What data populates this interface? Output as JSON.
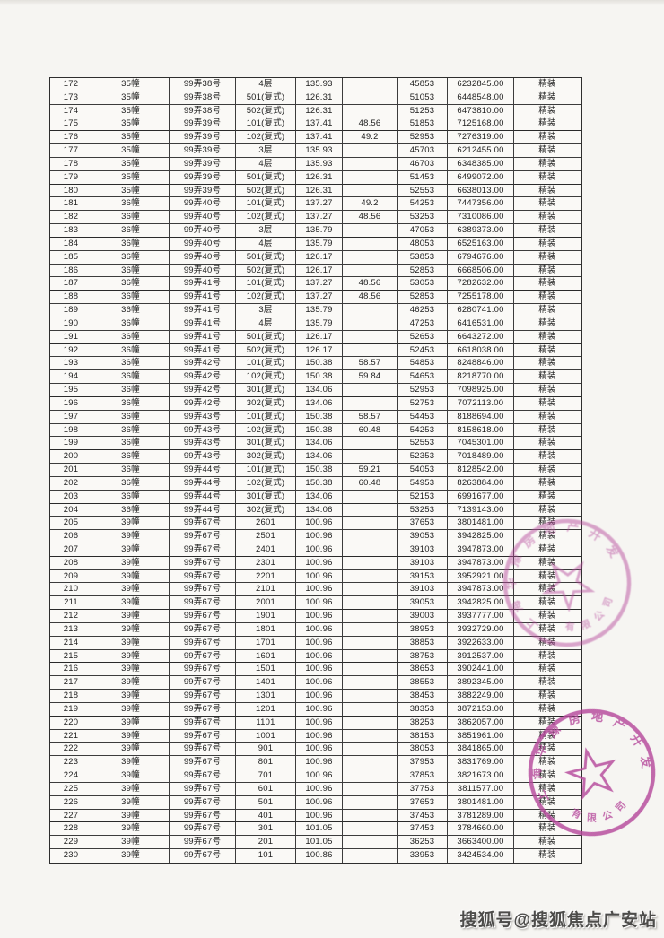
{
  "table": {
    "columns": [
      "index",
      "building",
      "address",
      "unit",
      "area",
      "extra_area",
      "unit_price",
      "total_price",
      "decoration"
    ],
    "rows": [
      [
        "172",
        "35幢",
        "99弄38号",
        "4层",
        "135.93",
        "",
        "45853",
        "6232845.00",
        "精装"
      ],
      [
        "173",
        "35幢",
        "99弄38号",
        "501(复式)",
        "126.31",
        "",
        "51053",
        "6448548.00",
        "精装"
      ],
      [
        "174",
        "35幢",
        "99弄38号",
        "502(复式)",
        "126.31",
        "",
        "51253",
        "6473810.00",
        "精装"
      ],
      [
        "175",
        "35幢",
        "99弄39号",
        "101(复式)",
        "137.41",
        "48.56",
        "51853",
        "7125168.00",
        "精装"
      ],
      [
        "176",
        "35幢",
        "99弄39号",
        "102(复式)",
        "137.41",
        "49.2",
        "52953",
        "7276319.00",
        "精装"
      ],
      [
        "177",
        "35幢",
        "99弄39号",
        "3层",
        "135.93",
        "",
        "45703",
        "6212455.00",
        "精装"
      ],
      [
        "178",
        "35幢",
        "99弄39号",
        "4层",
        "135.93",
        "",
        "46703",
        "6348385.00",
        "精装"
      ],
      [
        "179",
        "35幢",
        "99弄39号",
        "501(复式)",
        "126.31",
        "",
        "51453",
        "6499072.00",
        "精装"
      ],
      [
        "180",
        "35幢",
        "99弄39号",
        "502(复式)",
        "126.31",
        "",
        "52553",
        "6638013.00",
        "精装"
      ],
      [
        "181",
        "36幢",
        "99弄40号",
        "101(复式)",
        "137.27",
        "49.2",
        "54253",
        "7447356.00",
        "精装"
      ],
      [
        "182",
        "36幢",
        "99弄40号",
        "102(复式)",
        "137.27",
        "48.56",
        "53253",
        "7310086.00",
        "精装"
      ],
      [
        "183",
        "36幢",
        "99弄40号",
        "3层",
        "135.79",
        "",
        "47053",
        "6389373.00",
        "精装"
      ],
      [
        "184",
        "36幢",
        "99弄40号",
        "4层",
        "135.79",
        "",
        "48053",
        "6525163.00",
        "精装"
      ],
      [
        "185",
        "36幢",
        "99弄40号",
        "501(复式)",
        "126.17",
        "",
        "53853",
        "6794676.00",
        "精装"
      ],
      [
        "186",
        "36幢",
        "99弄40号",
        "502(复式)",
        "126.17",
        "",
        "52853",
        "6668506.00",
        "精装"
      ],
      [
        "187",
        "36幢",
        "99弄41号",
        "101(复式)",
        "137.27",
        "48.56",
        "53053",
        "7282632.00",
        "精装"
      ],
      [
        "188",
        "36幢",
        "99弄41号",
        "102(复式)",
        "137.27",
        "48.56",
        "52853",
        "7255178.00",
        "精装"
      ],
      [
        "189",
        "36幢",
        "99弄41号",
        "3层",
        "135.79",
        "",
        "46253",
        "6280741.00",
        "精装"
      ],
      [
        "190",
        "36幢",
        "99弄41号",
        "4层",
        "135.79",
        "",
        "47253",
        "6416531.00",
        "精装"
      ],
      [
        "191",
        "36幢",
        "99弄41号",
        "501(复式)",
        "126.17",
        "",
        "52653",
        "6643272.00",
        "精装"
      ],
      [
        "192",
        "36幢",
        "99弄41号",
        "502(复式)",
        "126.17",
        "",
        "52453",
        "6618038.00",
        "精装"
      ],
      [
        "193",
        "36幢",
        "99弄42号",
        "101(复式)",
        "150.38",
        "58.57",
        "54853",
        "8248846.00",
        "精装"
      ],
      [
        "194",
        "36幢",
        "99弄42号",
        "102(复式)",
        "150.38",
        "59.84",
        "54653",
        "8218770.00",
        "精装"
      ],
      [
        "195",
        "36幢",
        "99弄42号",
        "301(复式)",
        "134.06",
        "",
        "52953",
        "7098925.00",
        "精装"
      ],
      [
        "196",
        "36幢",
        "99弄42号",
        "302(复式)",
        "134.06",
        "",
        "52753",
        "7072113.00",
        "精装"
      ],
      [
        "197",
        "36幢",
        "99弄43号",
        "101(复式)",
        "150.38",
        "58.57",
        "54453",
        "8188694.00",
        "精装"
      ],
      [
        "198",
        "36幢",
        "99弄43号",
        "102(复式)",
        "150.38",
        "60.48",
        "54253",
        "8158618.00",
        "精装"
      ],
      [
        "199",
        "36幢",
        "99弄43号",
        "301(复式)",
        "134.06",
        "",
        "52553",
        "7045301.00",
        "精装"
      ],
      [
        "200",
        "36幢",
        "99弄43号",
        "302(复式)",
        "134.06",
        "",
        "52353",
        "7018489.00",
        "精装"
      ],
      [
        "201",
        "36幢",
        "99弄44号",
        "101(复式)",
        "150.38",
        "59.21",
        "54053",
        "8128542.00",
        "精装"
      ],
      [
        "202",
        "36幢",
        "99弄44号",
        "102(复式)",
        "150.38",
        "60.48",
        "54953",
        "8263884.00",
        "精装"
      ],
      [
        "203",
        "36幢",
        "99弄44号",
        "301(复式)",
        "134.06",
        "",
        "52153",
        "6991677.00",
        "精装"
      ],
      [
        "204",
        "36幢",
        "99弄44号",
        "302(复式)",
        "134.06",
        "",
        "53253",
        "7139143.00",
        "精装"
      ],
      [
        "205",
        "39幢",
        "99弄67号",
        "2601",
        "100.96",
        "",
        "37653",
        "3801481.00",
        "精装"
      ],
      [
        "206",
        "39幢",
        "99弄67号",
        "2501",
        "100.96",
        "",
        "39053",
        "3942825.00",
        "精装"
      ],
      [
        "207",
        "39幢",
        "99弄67号",
        "2401",
        "100.96",
        "",
        "39103",
        "3947873.00",
        "精装"
      ],
      [
        "208",
        "39幢",
        "99弄67号",
        "2301",
        "100.96",
        "",
        "39103",
        "3947873.00",
        "精装"
      ],
      [
        "209",
        "39幢",
        "99弄67号",
        "2201",
        "100.96",
        "",
        "39153",
        "3952921.00",
        "精装"
      ],
      [
        "210",
        "39幢",
        "99弄67号",
        "2101",
        "100.96",
        "",
        "39103",
        "3947873.00",
        "精装"
      ],
      [
        "211",
        "39幢",
        "99弄67号",
        "2001",
        "100.96",
        "",
        "39053",
        "3942825.00",
        "精装"
      ],
      [
        "212",
        "39幢",
        "99弄67号",
        "1901",
        "100.96",
        "",
        "39003",
        "3937777.00",
        "精装"
      ],
      [
        "213",
        "39幢",
        "99弄67号",
        "1801",
        "100.96",
        "",
        "38953",
        "3932729.00",
        "精装"
      ],
      [
        "214",
        "39幢",
        "99弄67号",
        "1701",
        "100.96",
        "",
        "38853",
        "3922633.00",
        "精装"
      ],
      [
        "215",
        "39幢",
        "99弄67号",
        "1601",
        "100.96",
        "",
        "38753",
        "3912537.00",
        "精装"
      ],
      [
        "216",
        "39幢",
        "99弄67号",
        "1501",
        "100.96",
        "",
        "38653",
        "3902441.00",
        "精装"
      ],
      [
        "217",
        "39幢",
        "99弄67号",
        "1401",
        "100.96",
        "",
        "38553",
        "3892345.00",
        "精装"
      ],
      [
        "218",
        "39幢",
        "99弄67号",
        "1301",
        "100.96",
        "",
        "38453",
        "3882249.00",
        "精装"
      ],
      [
        "219",
        "39幢",
        "99弄67号",
        "1201",
        "100.96",
        "",
        "38353",
        "3872153.00",
        "精装"
      ],
      [
        "220",
        "39幢",
        "99弄67号",
        "1101",
        "100.96",
        "",
        "38253",
        "3862057.00",
        "精装"
      ],
      [
        "221",
        "39幢",
        "99弄67号",
        "1001",
        "100.96",
        "",
        "38153",
        "3851961.00",
        "精装"
      ],
      [
        "222",
        "39幢",
        "99弄67号",
        "901",
        "100.96",
        "",
        "38053",
        "3841865.00",
        "精装"
      ],
      [
        "223",
        "39幢",
        "99弄67号",
        "801",
        "100.96",
        "",
        "37953",
        "3831769.00",
        "精装"
      ],
      [
        "224",
        "39幢",
        "99弄67号",
        "701",
        "100.96",
        "",
        "37853",
        "3821673.00",
        "精装"
      ],
      [
        "225",
        "39幢",
        "99弄67号",
        "601",
        "100.96",
        "",
        "37753",
        "3811577.00",
        "精装"
      ],
      [
        "226",
        "39幢",
        "99弄67号",
        "501",
        "100.96",
        "",
        "37653",
        "3801481.00",
        "精装"
      ],
      [
        "227",
        "39幢",
        "99弄67号",
        "401",
        "100.96",
        "",
        "37453",
        "3781289.00",
        "精装"
      ],
      [
        "228",
        "39幢",
        "99弄67号",
        "301",
        "101.05",
        "",
        "37453",
        "3784660.00",
        "精装"
      ],
      [
        "229",
        "39幢",
        "99弄67号",
        "201",
        "101.05",
        "",
        "36253",
        "3663400.00",
        "精装"
      ],
      [
        "230",
        "39幢",
        "99弄67号",
        "101",
        "100.86",
        "",
        "33953",
        "3424534.00",
        "精装"
      ]
    ]
  },
  "stamps": {
    "color": "#b64a9c",
    "arc_text": "上海华豫房地产开发",
    "bottom_text": "有限公司",
    "star_icon": "five-pointed-star"
  },
  "watermark": {
    "text": "搜狐号@搜狐焦点广安站"
  }
}
